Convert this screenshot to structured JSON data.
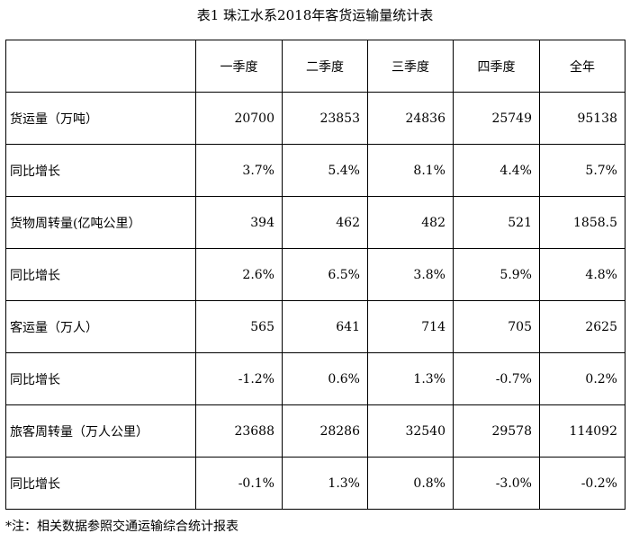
{
  "title": "表1  珠江水系2018年客货运输量统计表",
  "table": {
    "headers": [
      "",
      "一季度",
      "二季度",
      "三季度",
      "四季度",
      "全年"
    ],
    "rows": [
      {
        "label": "货运量（万吨）",
        "values": [
          "20700",
          "23853",
          "24836",
          "25749",
          "95138"
        ]
      },
      {
        "label": "同比增长",
        "values": [
          "3.7%",
          "5.4%",
          "8.1%",
          "4.4%",
          "5.7%"
        ]
      },
      {
        "label": "货物周转量(亿吨公里）",
        "values": [
          "394",
          "462",
          "482",
          "521",
          "1858.5"
        ]
      },
      {
        "label": "同比增长",
        "values": [
          "2.6%",
          "6.5%",
          "3.8%",
          "5.9%",
          "4.8%"
        ]
      },
      {
        "label": "客运量（万人）",
        "values": [
          "565",
          "641",
          "714",
          "705",
          "2625"
        ]
      },
      {
        "label": "同比增长",
        "values": [
          "-1.2%",
          "0.6%",
          "1.3%",
          "-0.7%",
          "0.2%"
        ]
      },
      {
        "label": "旅客周转量（万人公里）",
        "values": [
          "23688",
          "28286",
          "32540",
          "29578",
          "114092"
        ]
      },
      {
        "label": "同比增长",
        "values": [
          "-0.1%",
          "1.3%",
          "0.8%",
          "-3.0%",
          "-0.2%"
        ]
      }
    ]
  },
  "footnote": "*注：相关数据参照交通运输综合统计报表"
}
